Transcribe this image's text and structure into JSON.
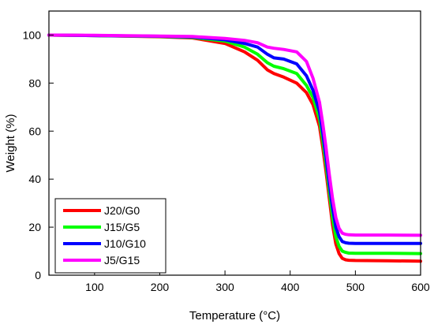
{
  "chart_data": {
    "type": "line",
    "title": "",
    "xlabel": "Temperature (°C)",
    "ylabel": "Weight (%)",
    "xlim": [
      30,
      600
    ],
    "ylim": [
      0,
      110
    ],
    "xticks": [
      100,
      200,
      300,
      400,
      500,
      600
    ],
    "yticks": [
      0,
      20,
      40,
      60,
      80,
      100
    ],
    "grid": false,
    "legend_position": "bottom-left",
    "series": [
      {
        "name": "J20/G0",
        "color": "#ff0000",
        "x": [
          30,
          100,
          200,
          250,
          300,
          330,
          350,
          365,
          375,
          390,
          410,
          425,
          435,
          445,
          450,
          455,
          460,
          465,
          470,
          475,
          480,
          485,
          490,
          500,
          550,
          600
        ],
        "y": [
          100,
          99.8,
          99.3,
          98.8,
          96.5,
          93,
          89.5,
          85.5,
          84,
          82.5,
          80,
          76,
          71,
          62,
          53,
          43,
          32,
          21,
          13,
          9,
          7,
          6.4,
          6.2,
          6.1,
          6.0,
          5.8
        ]
      },
      {
        "name": "J15/G5",
        "color": "#00ff00",
        "x": [
          30,
          100,
          200,
          250,
          300,
          330,
          350,
          365,
          375,
          390,
          410,
          425,
          435,
          445,
          450,
          455,
          460,
          465,
          470,
          475,
          480,
          485,
          490,
          500,
          550,
          600
        ],
        "y": [
          100,
          99.8,
          99.4,
          99,
          97.5,
          95,
          92,
          88.5,
          87,
          86,
          84,
          79,
          74,
          65,
          56,
          46,
          35,
          24,
          16,
          12,
          10,
          9.5,
          9.2,
          9.1,
          9.1,
          9.0
        ]
      },
      {
        "name": "J10/G10",
        "color": "#0000ff",
        "x": [
          30,
          100,
          200,
          250,
          300,
          330,
          350,
          365,
          375,
          390,
          410,
          425,
          435,
          445,
          450,
          455,
          460,
          465,
          470,
          475,
          480,
          485,
          490,
          500,
          550,
          600
        ],
        "y": [
          100,
          99.8,
          99.5,
          99.2,
          98,
          96.5,
          95,
          92,
          90.5,
          90,
          88,
          83,
          77,
          68,
          59,
          49,
          38,
          28,
          20,
          16,
          14,
          13.5,
          13.3,
          13.2,
          13.2,
          13.2
        ]
      },
      {
        "name": "J5/G15",
        "color": "#ff00ff",
        "x": [
          30,
          100,
          200,
          250,
          300,
          330,
          350,
          365,
          375,
          390,
          410,
          425,
          435,
          445,
          450,
          455,
          460,
          465,
          470,
          475,
          480,
          485,
          490,
          500,
          550,
          600
        ],
        "y": [
          100,
          99.9,
          99.6,
          99.4,
          98.6,
          97.8,
          96.8,
          95,
          94.5,
          94,
          93,
          89,
          82,
          72,
          63,
          53,
          42,
          32,
          24,
          19.5,
          17.5,
          17,
          16.8,
          16.7,
          16.7,
          16.6
        ]
      }
    ]
  }
}
